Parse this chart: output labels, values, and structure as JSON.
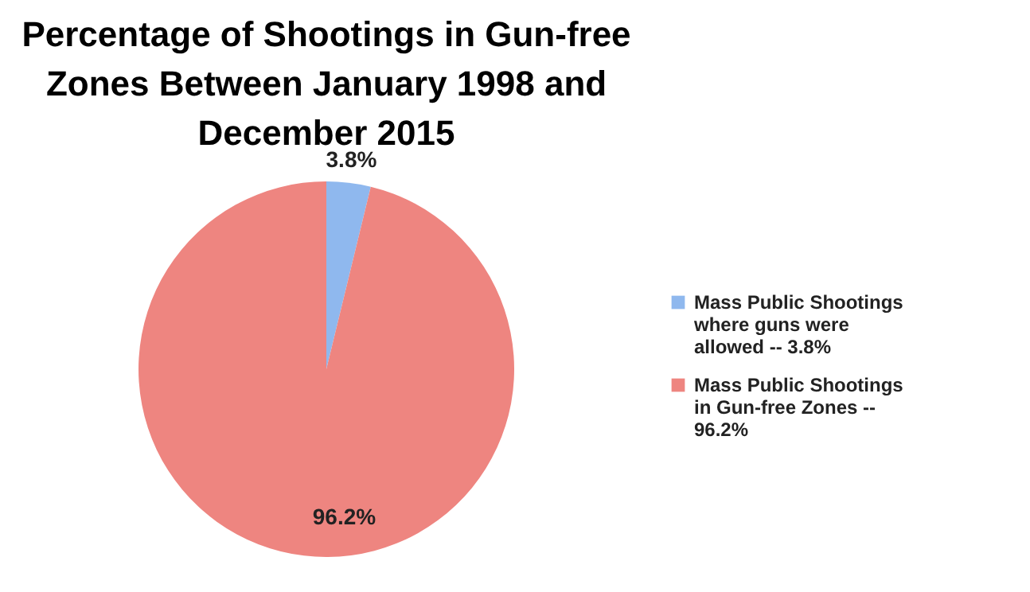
{
  "chart_data": {
    "type": "pie",
    "title": "Percentage of Shootings in Gun-free Zones Between January 1998 and December 2015",
    "categories": [
      "Mass Public Shootings where guns were allowed -- 3.8%",
      "Mass Public Shootings in Gun-free Zones -- 96.2%"
    ],
    "values": [
      3.8,
      96.2
    ],
    "colors": [
      "#8fb8ee",
      "#ee8580"
    ],
    "value_labels": [
      "3.8%",
      "96.2%"
    ],
    "legend": "right"
  }
}
